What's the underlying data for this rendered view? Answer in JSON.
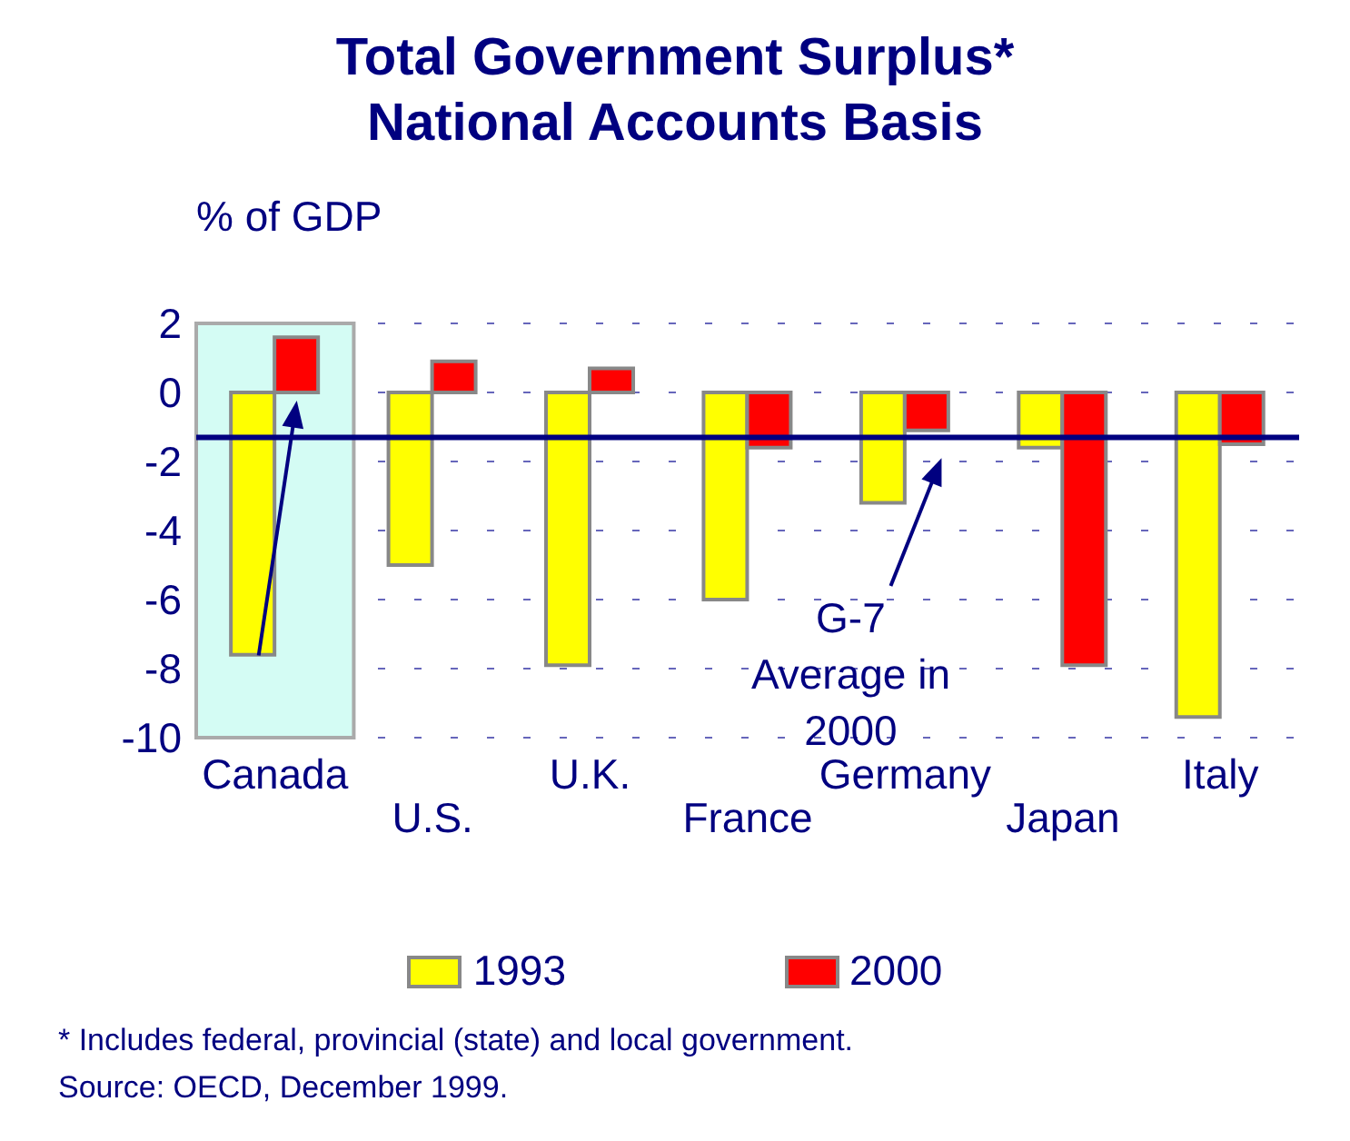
{
  "chart_data": {
    "type": "bar",
    "title": "Total Government Surplus*\nNational Accounts Basis",
    "ylabel": "% of GDP",
    "categories": [
      "Canada",
      "U.S.",
      "U.K.",
      "France",
      "Germany",
      "Japan",
      "Italy"
    ],
    "series": [
      {
        "name": "1993",
        "color": "#ffff00",
        "values": [
          -7.6,
          -5.0,
          -7.9,
          -6.0,
          -3.2,
          -1.6,
          -9.4
        ]
      },
      {
        "name": "2000",
        "color": "#ff0000",
        "values": [
          1.6,
          0.9,
          0.7,
          -1.6,
          -1.1,
          -7.9,
          -1.5
        ]
      }
    ],
    "ylim": [
      -10,
      2
    ],
    "yticks": [
      -10,
      -8,
      -6,
      -4,
      -2,
      0,
      2
    ],
    "grid": "y",
    "legend": "bottom",
    "ref_lines": [
      {
        "axis": "y",
        "value": -1.3,
        "label": "G-7\nAverage in\n2000",
        "color": "#000080"
      }
    ],
    "bands": [
      {
        "axis": "x",
        "from": "Canada",
        "to": "Canada",
        "color": "#d4fcf4"
      }
    ],
    "annotations": [
      "* Includes federal, provincial (state) and local government.",
      "Source:  OECD, December 1999."
    ]
  }
}
